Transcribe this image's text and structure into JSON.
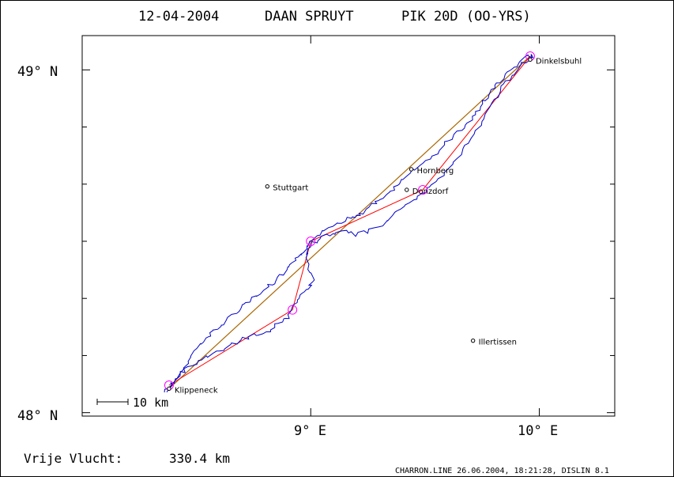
{
  "header": {
    "date": "12-04-2004",
    "pilot": "DAAN SPRUYT",
    "glider": "PIK 20D (OO-YRS)"
  },
  "axes": {
    "y_ticks": [
      {
        "label": "49° N",
        "lat": 49.0
      },
      {
        "label": "48° N",
        "lat": 48.0
      }
    ],
    "x_ticks": [
      {
        "label": "9° E",
        "lon": 9.0
      },
      {
        "label": "10° E",
        "lon": 10.0
      }
    ],
    "lon_range": [
      8.0,
      10.33
    ],
    "lat_range": [
      47.99,
      49.1
    ]
  },
  "towns": [
    {
      "name": "Dinkelsbuhl",
      "lon": 9.96,
      "lat": 49.03
    },
    {
      "name": "Hornberg",
      "lon": 9.44,
      "lat": 48.71
    },
    {
      "name": "Stuttgart",
      "lon": 8.81,
      "lat": 48.66
    },
    {
      "name": "Donzdorf",
      "lon": 9.42,
      "lat": 48.65
    },
    {
      "name": "Illertissen",
      "lon": 9.71,
      "lat": 48.21
    },
    {
      "name": "Klippeneck",
      "lon": 8.38,
      "lat": 48.07
    }
  ],
  "turnpoints": [
    {
      "lon": 8.38,
      "lat": 48.08
    },
    {
      "lon": 8.92,
      "lat": 48.3
    },
    {
      "lon": 9.0,
      "lat": 48.5
    },
    {
      "lon": 9.49,
      "lat": 48.65
    },
    {
      "lon": 9.96,
      "lat": 49.04
    }
  ],
  "direct_line": {
    "from": {
      "lon": 8.38,
      "lat": 48.07
    },
    "to": {
      "lon": 9.96,
      "lat": 49.04
    }
  },
  "track": [
    [
      8.36,
      48.06
    ],
    [
      8.39,
      48.08
    ],
    [
      8.42,
      48.1
    ],
    [
      8.45,
      48.13
    ],
    [
      8.48,
      48.17
    ],
    [
      8.52,
      48.2
    ],
    [
      8.55,
      48.22
    ],
    [
      8.58,
      48.24
    ],
    [
      8.62,
      48.26
    ],
    [
      8.66,
      48.29
    ],
    [
      8.7,
      48.31
    ],
    [
      8.74,
      48.33
    ],
    [
      8.78,
      48.35
    ],
    [
      8.82,
      48.37
    ],
    [
      8.86,
      48.39
    ],
    [
      8.9,
      48.42
    ],
    [
      8.93,
      48.44
    ],
    [
      8.96,
      48.46
    ],
    [
      8.98,
      48.48
    ],
    [
      9.01,
      48.5
    ],
    [
      9.05,
      48.53
    ],
    [
      9.1,
      48.55
    ],
    [
      9.14,
      48.56
    ],
    [
      9.18,
      48.57
    ],
    [
      9.22,
      48.58
    ],
    [
      9.26,
      48.6
    ],
    [
      9.3,
      48.62
    ],
    [
      9.34,
      48.64
    ],
    [
      9.38,
      48.66
    ],
    [
      9.42,
      48.69
    ],
    [
      9.46,
      48.71
    ],
    [
      9.52,
      48.74
    ],
    [
      9.58,
      48.78
    ],
    [
      9.63,
      48.81
    ],
    [
      9.68,
      48.84
    ],
    [
      9.72,
      48.87
    ],
    [
      9.75,
      48.9
    ],
    [
      9.78,
      48.93
    ],
    [
      9.82,
      48.96
    ],
    [
      9.86,
      48.99
    ],
    [
      9.9,
      49.01
    ],
    [
      9.95,
      49.04
    ],
    [
      9.97,
      49.04
    ],
    [
      9.93,
      49.02
    ],
    [
      9.88,
      48.98
    ],
    [
      9.84,
      48.95
    ],
    [
      9.8,
      48.9
    ],
    [
      9.76,
      48.86
    ],
    [
      9.72,
      48.82
    ],
    [
      9.68,
      48.78
    ],
    [
      9.63,
      48.73
    ],
    [
      9.58,
      48.69
    ],
    [
      9.52,
      48.66
    ],
    [
      9.47,
      48.63
    ],
    [
      9.42,
      48.61
    ],
    [
      9.37,
      48.58
    ],
    [
      9.32,
      48.55
    ],
    [
      9.26,
      48.53
    ],
    [
      9.2,
      48.52
    ],
    [
      9.14,
      48.53
    ],
    [
      9.09,
      48.52
    ],
    [
      9.04,
      48.51
    ],
    [
      9.0,
      48.49
    ],
    [
      8.98,
      48.46
    ],
    [
      8.99,
      48.42
    ],
    [
      9.01,
      48.39
    ],
    [
      8.99,
      48.36
    ],
    [
      8.96,
      48.34
    ],
    [
      8.93,
      48.31
    ],
    [
      8.9,
      48.28
    ],
    [
      8.86,
      48.26
    ],
    [
      8.82,
      48.24
    ],
    [
      8.77,
      48.23
    ],
    [
      8.72,
      48.22
    ],
    [
      8.66,
      48.2
    ],
    [
      8.6,
      48.18
    ],
    [
      8.54,
      48.16
    ],
    [
      8.49,
      48.14
    ],
    [
      8.44,
      48.12
    ],
    [
      8.4,
      48.09
    ],
    [
      8.37,
      48.06
    ]
  ],
  "scale_bar": {
    "label": "10 km"
  },
  "footer": {
    "free_flight_label": "Vrije Vlucht:",
    "free_flight_value": "330.4 km",
    "credits": "CHARRON.LINE 26.06.2004, 18:21:28, DISLIN 8.1"
  },
  "colors": {
    "track": "#0000cc",
    "direct_line": "#aa6600",
    "task_line": "#ff0000",
    "turnpoint_circle": "#ff00ff",
    "frame": "#000000"
  }
}
